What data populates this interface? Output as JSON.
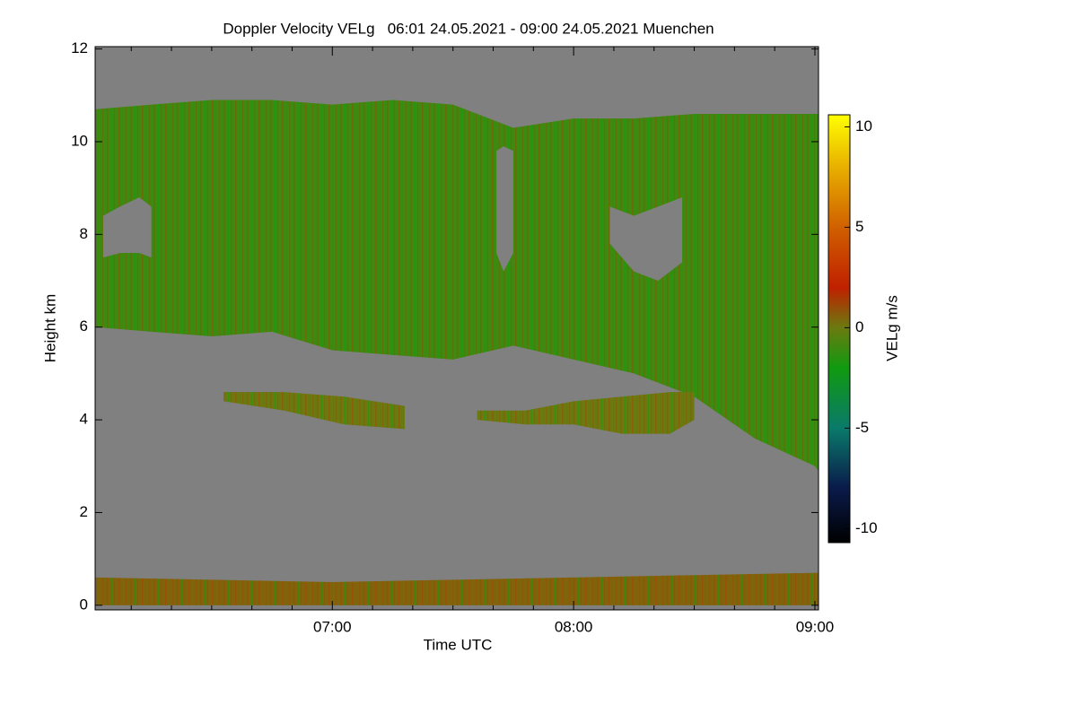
{
  "chart_data": {
    "type": "heatmap",
    "title": "Doppler Velocity VELg   06:01 24.05.2021 - 09:00 24.05.2021 Muenchen",
    "xlabel": "Time UTC",
    "ylabel": "Height km",
    "colorbar_label": "VELg m/s",
    "xlim": [
      6.017,
      9.015
    ],
    "ylim": [
      -0.1,
      12.05
    ],
    "xticks": [
      {
        "value": 7,
        "label": "07:00"
      },
      {
        "value": 8,
        "label": "08:00"
      },
      {
        "value": 9,
        "label": "09:00"
      }
    ],
    "xminorticks": [
      6.1667,
      6.3333,
      6.5,
      6.6667,
      6.8333,
      7.1667,
      7.3333,
      7.5,
      7.6667,
      7.8333,
      8.1667,
      8.3333,
      8.5,
      8.6667,
      8.8333
    ],
    "yticks": [
      0,
      2,
      4,
      6,
      8,
      10,
      12
    ],
    "clim": [
      -10.7,
      10.6
    ],
    "cticks": [
      -10,
      -5,
      0,
      5,
      10
    ],
    "colormap": [
      [
        -10.7,
        "#000000"
      ],
      [
        -8,
        "#0a1a4a"
      ],
      [
        -5,
        "#0a7a6a"
      ],
      [
        -2,
        "#109a10"
      ],
      [
        0,
        "#6a7a10"
      ],
      [
        2,
        "#c02000"
      ],
      [
        5,
        "#d06000"
      ],
      [
        8,
        "#e8b000"
      ],
      [
        10.6,
        "#ffff00"
      ]
    ],
    "background": "#808080",
    "layers": [
      {
        "x": [
          6.02,
          6.25,
          6.5,
          6.75,
          7.0,
          7.25,
          7.5,
          7.75,
          8.0,
          8.25,
          8.5,
          8.75,
          9.0,
          9.015
        ],
        "top": [
          10.7,
          10.8,
          10.9,
          10.9,
          10.8,
          10.9,
          10.8,
          10.3,
          10.5,
          10.5,
          10.6,
          10.6,
          10.6,
          10.6
        ],
        "base": [
          6.0,
          5.9,
          5.8,
          5.9,
          5.5,
          5.4,
          5.3,
          5.6,
          5.3,
          5.0,
          4.5,
          3.6,
          3.0,
          2.9
        ],
        "value": -1
      },
      {
        "x": [
          6.05,
          6.12,
          6.2,
          6.25
        ],
        "top": [
          8.4,
          8.6,
          8.8,
          8.6
        ],
        "base": [
          7.5,
          7.6,
          7.6,
          7.5
        ],
        "value": null
      },
      {
        "x": [
          7.68,
          7.71,
          7.75
        ],
        "top": [
          9.8,
          9.9,
          9.8
        ],
        "base": [
          7.6,
          7.2,
          7.6
        ],
        "value": null
      },
      {
        "x": [
          8.15,
          8.25,
          8.35,
          8.45
        ],
        "top": [
          8.6,
          8.4,
          8.6,
          8.8
        ],
        "base": [
          7.8,
          7.2,
          7.0,
          7.4
        ],
        "value": null
      },
      {
        "x": [
          6.55,
          6.8,
          7.05,
          7.3
        ],
        "top": [
          4.6,
          4.6,
          4.5,
          4.3
        ],
        "base": [
          4.4,
          4.2,
          3.9,
          3.8
        ],
        "value": 0
      },
      {
        "x": [
          7.6,
          7.8,
          8.0,
          8.2,
          8.4,
          8.5
        ],
        "top": [
          4.2,
          4.2,
          4.4,
          4.5,
          4.6,
          4.6
        ],
        "base": [
          4.0,
          3.9,
          3.9,
          3.7,
          3.7,
          4.0
        ],
        "value": 0
      },
      {
        "x": [
          6.02,
          6.5,
          7.0,
          7.5,
          8.0,
          8.5,
          9.015
        ],
        "top": [
          0.6,
          0.55,
          0.5,
          0.55,
          0.6,
          0.65,
          0.7
        ],
        "base": [
          0.0,
          0.0,
          0.0,
          0.0,
          0.0,
          0.0,
          0.0
        ],
        "value": 0.5
      }
    ]
  }
}
